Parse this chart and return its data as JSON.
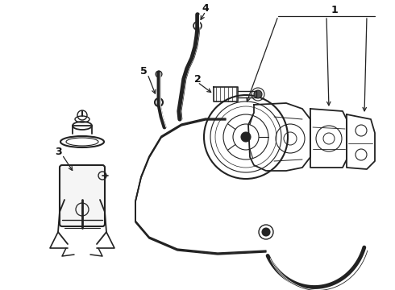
{
  "bg_color": "#ffffff",
  "line_color": "#222222",
  "label_color": "#111111",
  "figsize": [
    4.9,
    3.6
  ],
  "dpi": 100,
  "xlim": [
    0,
    490
  ],
  "ylim": [
    0,
    360
  ]
}
